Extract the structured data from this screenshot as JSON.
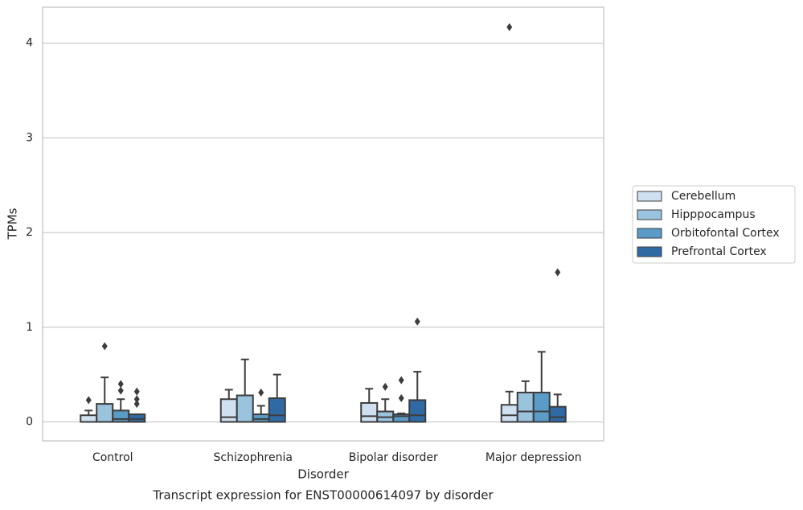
{
  "chart_data": {
    "type": "box",
    "title": "Transcript expression for ENST00000614097 by disorder",
    "xlabel": "Disorder",
    "ylabel": "TPMs",
    "categories": [
      "Control",
      "Schizophrenia",
      "Bipolar disorder",
      "Major depression"
    ],
    "ylim": [
      -0.2,
      4.38
    ],
    "yticks": [
      0,
      1,
      2,
      3,
      4
    ],
    "grid": true,
    "legend": "right",
    "series": [
      {
        "name": "Cerebellum",
        "color": "#cfe0f1",
        "boxes": [
          {
            "low": 0,
            "q1": 0,
            "median": 0,
            "q3": 0.07,
            "high": 0.12,
            "outliers": [
              0.23
            ]
          },
          {
            "low": 0,
            "q1": 0,
            "median": 0.05,
            "q3": 0.24,
            "high": 0.34,
            "outliers": []
          },
          {
            "low": 0,
            "q1": 0,
            "median": 0.06,
            "q3": 0.2,
            "high": 0.35,
            "outliers": []
          },
          {
            "low": 0,
            "q1": 0,
            "median": 0.07,
            "q3": 0.18,
            "high": 0.32,
            "outliers": [
              4.17
            ]
          }
        ]
      },
      {
        "name": "Hipppocampus",
        "color": "#9ac3de",
        "boxes": [
          {
            "low": 0,
            "q1": 0,
            "median": 0,
            "q3": 0.19,
            "high": 0.47,
            "outliers": [
              0.8
            ]
          },
          {
            "low": 0,
            "q1": 0,
            "median": 0,
            "q3": 0.28,
            "high": 0.66,
            "outliers": []
          },
          {
            "low": 0,
            "q1": 0,
            "median": 0.05,
            "q3": 0.11,
            "high": 0.24,
            "outliers": [
              0.37
            ]
          },
          {
            "low": 0,
            "q1": 0,
            "median": 0.11,
            "q3": 0.31,
            "high": 0.43,
            "outliers": []
          }
        ]
      },
      {
        "name": "Orbitofontal Cortex",
        "color": "#5a9bc8",
        "boxes": [
          {
            "low": 0,
            "q1": 0,
            "median": 0.03,
            "q3": 0.12,
            "high": 0.24,
            "outliers": [
              0.4,
              0.33
            ]
          },
          {
            "low": 0,
            "q1": 0,
            "median": 0.03,
            "q3": 0.08,
            "high": 0.17,
            "outliers": [
              0.31
            ]
          },
          {
            "low": 0,
            "q1": 0,
            "median": 0.06,
            "q3": 0.08,
            "high": 0.09,
            "outliers": [
              0.44,
              0.25
            ]
          },
          {
            "low": 0,
            "q1": 0,
            "median": 0.11,
            "q3": 0.31,
            "high": 0.74,
            "outliers": []
          }
        ]
      },
      {
        "name": "Prefrontal Cortex",
        "color": "#2f6aa5",
        "boxes": [
          {
            "low": 0,
            "q1": 0,
            "median": 0.03,
            "q3": 0.08,
            "high": 0.08,
            "outliers": [
              0.32,
              0.24,
              0.19
            ]
          },
          {
            "low": 0,
            "q1": 0,
            "median": 0.07,
            "q3": 0.25,
            "high": 0.5,
            "outliers": []
          },
          {
            "low": 0,
            "q1": 0,
            "median": 0.07,
            "q3": 0.23,
            "high": 0.53,
            "outliers": [
              1.06
            ]
          },
          {
            "low": 0,
            "q1": 0,
            "median": 0.05,
            "q3": 0.16,
            "high": 0.29,
            "outliers": [
              1.58
            ]
          }
        ]
      }
    ]
  }
}
